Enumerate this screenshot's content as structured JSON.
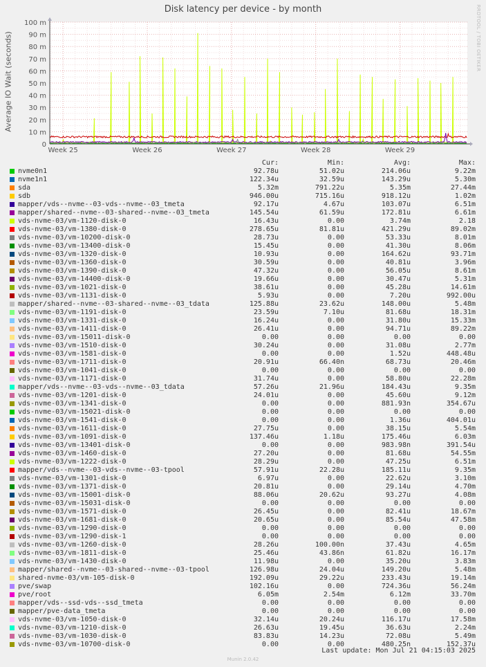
{
  "title": "Disk latency per device - by month",
  "side_label": "RRDTOOL / TOBI OETIKER",
  "footer": "Munin 2.0.42",
  "last_update": "Last update: Mon Jul 21 04:15:03 2025",
  "legend_headers": {
    "cur": "Cur:",
    "min": "Min:",
    "avg": "Avg:",
    "max": "Max:"
  },
  "chart_data": {
    "type": "line",
    "title": "Disk latency per device - by month",
    "ylabel": "Average IO Wait (seconds)",
    "xlabel": "",
    "ylim": [
      0,
      0.1
    ],
    "yticks": [
      {
        "value": 0,
        "label": "0"
      },
      {
        "value": 0.01,
        "label": "10 m"
      },
      {
        "value": 0.02,
        "label": "20 m"
      },
      {
        "value": 0.03,
        "label": "30 m"
      },
      {
        "value": 0.04,
        "label": "40 m"
      },
      {
        "value": 0.05,
        "label": "50 m"
      },
      {
        "value": 0.06,
        "label": "60 m"
      },
      {
        "value": 0.07,
        "label": "70 m"
      },
      {
        "value": 0.08,
        "label": "80 m"
      },
      {
        "value": 0.09,
        "label": "90 m"
      },
      {
        "value": 0.1,
        "label": "100 m"
      }
    ],
    "xticks": [
      {
        "day": 0,
        "label": "Week 25"
      },
      {
        "day": 7,
        "label": "Week 26"
      },
      {
        "day": 14,
        "label": "Week 27"
      },
      {
        "day": 21,
        "label": "Week 28"
      },
      {
        "day": 28,
        "label": "Week 29"
      }
    ],
    "xlim_days": [
      -1.1,
      33.6
    ],
    "grid": true,
    "series": [
      {
        "name": "vds-nvme-03/vm-1120-disk-0",
        "color": "#ccff00",
        "points": [
          [
            2.6,
            0.021
          ],
          [
            4.0,
            0.059
          ],
          [
            5.5,
            0.051
          ],
          [
            6.4,
            0.072
          ],
          [
            7.4,
            0.025
          ],
          [
            8.3,
            0.071
          ],
          [
            9.3,
            0.062
          ],
          [
            10.3,
            0.039
          ],
          [
            11.2,
            0.091
          ],
          [
            12.2,
            0.064
          ],
          [
            13.2,
            0.062
          ],
          [
            14.1,
            0.028
          ],
          [
            15.1,
            0.055
          ],
          [
            16.1,
            0.025
          ],
          [
            17.0,
            0.07
          ],
          [
            18.0,
            0.059
          ],
          [
            19.0,
            0.03
          ],
          [
            19.9,
            0.024
          ],
          [
            20.9,
            0.026
          ],
          [
            21.8,
            0.045
          ],
          [
            22.8,
            0.07
          ],
          [
            23.8,
            0.027
          ],
          [
            24.7,
            0.057
          ],
          [
            25.7,
            0.055
          ],
          [
            26.6,
            0.037
          ],
          [
            27.6,
            0.053
          ],
          [
            28.6,
            0.031
          ],
          [
            29.5,
            0.054
          ],
          [
            30.5,
            0.052
          ],
          [
            31.4,
            0.05
          ],
          [
            32.4,
            0.055
          ]
        ]
      },
      {
        "name": "vds-nvme-03/vm-1380-disk-0",
        "color": "#cc0000",
        "baseline": 0.0058,
        "noise": 0.0015,
        "bumps": [
          [
            32.0,
            0.009
          ]
        ]
      },
      {
        "name": "vds-nvme-03/vm-1681-disk-0",
        "color": "#7700aa",
        "baseline": 0.0015,
        "noise": 0.001,
        "bumps": [
          [
            5.9,
            0.005
          ],
          [
            31.8,
            0.009
          ],
          [
            22.9,
            0.004
          ],
          [
            14.1,
            0.004
          ]
        ]
      },
      {
        "name": "vds-nvme-03/vm-1290-disk-0",
        "color": "#888888",
        "baseline": 0.0008,
        "noise": 0.0008,
        "bumps": [
          [
            14.5,
            0.004
          ],
          [
            24.9,
            0.003
          ]
        ]
      },
      {
        "name": "nvme0n1",
        "color": "#00cc00",
        "baseline": 0.0003,
        "noise": 0.0005,
        "bumps": []
      }
    ]
  },
  "legend": [
    {
      "name": "nvme0n1",
      "color": "#00cc00",
      "cur": "92.78u",
      "min": "51.02u",
      "avg": "214.06u",
      "max": "9.22m"
    },
    {
      "name": "nvme1n1",
      "color": "#0066b3",
      "cur": "122.34u",
      "min": "32.59u",
      "avg": "143.29u",
      "max": "5.30m"
    },
    {
      "name": "sda",
      "color": "#ff8000",
      "cur": "5.32m",
      "min": "791.22u",
      "avg": "5.35m",
      "max": "27.44m"
    },
    {
      "name": "sdb",
      "color": "#ffcc00",
      "cur": "946.00u",
      "min": "715.16u",
      "avg": "918.12u",
      "max": "1.02m"
    },
    {
      "name": "mapper/vds--nvme--03-vds--nvme--03_tmeta",
      "color": "#330099",
      "cur": "92.17u",
      "min": "4.67u",
      "avg": "103.07u",
      "max": "6.51m"
    },
    {
      "name": "mapper/shared--nvme--03-shared--nvme--03_tmeta",
      "color": "#990099",
      "cur": "145.54u",
      "min": "61.59u",
      "avg": "172.81u",
      "max": "6.61m"
    },
    {
      "name": "vds-nvme-03/vm-1120-disk-0",
      "color": "#ccff00",
      "cur": "16.43u",
      "min": "0.00",
      "avg": "3.74m",
      "max": "2.18"
    },
    {
      "name": "vds-nvme-03/vm-1380-disk-0",
      "color": "#ff0000",
      "cur": "278.65u",
      "min": "81.81u",
      "avg": "421.29u",
      "max": "89.02m"
    },
    {
      "name": "vds-nvme-03/vm-10200-disk-0",
      "color": "#808080",
      "cur": "28.73u",
      "min": "0.00",
      "avg": "53.33u",
      "max": "8.01m"
    },
    {
      "name": "vds-nvme-03/vm-13400-disk-0",
      "color": "#008f00",
      "cur": "15.45u",
      "min": "0.00",
      "avg": "41.30u",
      "max": "8.06m"
    },
    {
      "name": "vds-nvme-03/vm-1320-disk-0",
      "color": "#00487d",
      "cur": "10.93u",
      "min": "0.00",
      "avg": "164.62u",
      "max": "93.71m"
    },
    {
      "name": "vds-nvme-03/vm-1360-disk-0",
      "color": "#b35a00",
      "cur": "30.59u",
      "min": "0.00",
      "avg": "40.81u",
      "max": "3.96m"
    },
    {
      "name": "vds-nvme-03/vm-1390-disk-0",
      "color": "#b38f00",
      "cur": "47.32u",
      "min": "0.00",
      "avg": "56.05u",
      "max": "8.61m"
    },
    {
      "name": "vds-nvme-03/vm-14400-disk-0",
      "color": "#6b006b",
      "cur": "19.66u",
      "min": "0.00",
      "avg": "30.47u",
      "max": "5.31m"
    },
    {
      "name": "vds-nvme-03/vm-1021-disk-0",
      "color": "#8fb300",
      "cur": "38.61u",
      "min": "0.00",
      "avg": "45.28u",
      "max": "14.61m"
    },
    {
      "name": "vds-nvme-03/vm-1131-disk-0",
      "color": "#b30000",
      "cur": "5.93u",
      "min": "0.00",
      "avg": "7.20u",
      "max": "992.00u"
    },
    {
      "name": "mapper/shared--nvme--03-shared--nvme--03_tdata",
      "color": "#bebebe",
      "cur": "125.88u",
      "min": "23.62u",
      "avg": "148.00u",
      "max": "5.48m"
    },
    {
      "name": "vds-nvme-03/vm-1191-disk-0",
      "color": "#80ff80",
      "cur": "23.59u",
      "min": "7.10u",
      "avg": "81.68u",
      "max": "18.31m"
    },
    {
      "name": "vds-nvme-03/vm-1331-disk-0",
      "color": "#80c9ff",
      "cur": "16.24u",
      "min": "0.00",
      "avg": "31.80u",
      "max": "15.33m"
    },
    {
      "name": "vds-nvme-03/vm-1411-disk-0",
      "color": "#ffc080",
      "cur": "26.41u",
      "min": "0.00",
      "avg": "94.71u",
      "max": "89.22m"
    },
    {
      "name": "vds-nvme-03/vm-15011-disk-0",
      "color": "#ffe680",
      "cur": "0.00",
      "min": "0.00",
      "avg": "0.00",
      "max": "0.00"
    },
    {
      "name": "vds-nvme-03/vm-1510-disk-0",
      "color": "#aa80ff",
      "cur": "30.24u",
      "min": "0.00",
      "avg": "31.08u",
      "max": "2.77m"
    },
    {
      "name": "vds-nvme-03/vm-1581-disk-0",
      "color": "#ee00cc",
      "cur": "0.00",
      "min": "0.00",
      "avg": "1.52u",
      "max": "448.48u"
    },
    {
      "name": "vds-nvme-03/vm-1711-disk-0",
      "color": "#ff8080",
      "cur": "20.91u",
      "min": "66.40n",
      "avg": "68.73u",
      "max": "20.46m"
    },
    {
      "name": "vds-nvme-03/vm-1041-disk-0",
      "color": "#666600",
      "cur": "0.00",
      "min": "0.00",
      "avg": "0.00",
      "max": "0.00"
    },
    {
      "name": "vds-nvme-03/vm-1171-disk-0",
      "color": "#ffbfff",
      "cur": "31.74u",
      "min": "0.00",
      "avg": "58.80u",
      "max": "22.28m"
    },
    {
      "name": "mapper/vds--nvme--03-vds--nvme--03_tdata",
      "color": "#00ffcc",
      "cur": "57.26u",
      "min": "21.96u",
      "avg": "184.43u",
      "max": "9.35m"
    },
    {
      "name": "vds-nvme-03/vm-1201-disk-0",
      "color": "#cc6699",
      "cur": "24.01u",
      "min": "0.00",
      "avg": "45.60u",
      "max": "9.12m"
    },
    {
      "name": "vds-nvme-03/vm-1341-disk-0",
      "color": "#999900",
      "cur": "0.00",
      "min": "0.00",
      "avg": "881.93n",
      "max": "354.67u"
    },
    {
      "name": "vds-nvme-03/vm-15021-disk-0",
      "color": "#00cc00",
      "cur": "0.00",
      "min": "0.00",
      "avg": "0.00",
      "max": "0.00"
    },
    {
      "name": "vds-nvme-03/vm-1541-disk-0",
      "color": "#0066b3",
      "cur": "0.00",
      "min": "0.00",
      "avg": "1.36u",
      "max": "404.01u"
    },
    {
      "name": "vds-nvme-03/vm-1611-disk-0",
      "color": "#ff8000",
      "cur": "27.75u",
      "min": "0.00",
      "avg": "38.15u",
      "max": "5.54m"
    },
    {
      "name": "vds-nvme-03/vm-1091-disk-0",
      "color": "#ffcc00",
      "cur": "137.46u",
      "min": "1.18u",
      "avg": "175.46u",
      "max": "6.03m"
    },
    {
      "name": "vds-nvme-03/vm-13401-disk-0",
      "color": "#330099",
      "cur": "0.00",
      "min": "0.00",
      "avg": "983.98n",
      "max": "391.54u"
    },
    {
      "name": "vds-nvme-03/vm-1460-disk-0",
      "color": "#990099",
      "cur": "27.20u",
      "min": "0.00",
      "avg": "81.68u",
      "max": "54.55m"
    },
    {
      "name": "vds-nvme-03/vm-1222-disk-0",
      "color": "#ccff00",
      "cur": "28.29u",
      "min": "0.00",
      "avg": "47.25u",
      "max": "6.51m"
    },
    {
      "name": "mapper/vds--nvme--03-vds--nvme--03-tpool",
      "color": "#ff0000",
      "cur": "57.91u",
      "min": "22.28u",
      "avg": "185.11u",
      "max": "9.35m"
    },
    {
      "name": "vds-nvme-03/vm-1301-disk-0",
      "color": "#808080",
      "cur": "6.97u",
      "min": "0.00",
      "avg": "22.62u",
      "max": "3.10m"
    },
    {
      "name": "vds-nvme-03/vm-1371-disk-0",
      "color": "#008f00",
      "cur": "20.81u",
      "min": "0.00",
      "avg": "29.14u",
      "max": "4.70m"
    },
    {
      "name": "vds-nvme-03/vm-15001-disk-0",
      "color": "#00487d",
      "cur": "88.06u",
      "min": "20.62u",
      "avg": "93.27u",
      "max": "4.08m"
    },
    {
      "name": "vds-nvme-03/vm-15031-disk-0",
      "color": "#b35a00",
      "cur": "0.00",
      "min": "0.00",
      "avg": "0.00",
      "max": "0.00"
    },
    {
      "name": "vds-nvme-03/vm-1571-disk-0",
      "color": "#b38f00",
      "cur": "26.45u",
      "min": "0.00",
      "avg": "82.41u",
      "max": "18.67m"
    },
    {
      "name": "vds-nvme-03/vm-1681-disk-0",
      "color": "#6b006b",
      "cur": "20.65u",
      "min": "0.00",
      "avg": "85.54u",
      "max": "47.58m"
    },
    {
      "name": "vds-nvme-03/vm-1290-disk-0",
      "color": "#8fb300",
      "cur": "0.00",
      "min": "0.00",
      "avg": "0.00",
      "max": "0.00"
    },
    {
      "name": "vds-nvme-03/vm-1290-disk-1",
      "color": "#b30000",
      "cur": "0.00",
      "min": "0.00",
      "avg": "0.00",
      "max": "0.00"
    },
    {
      "name": "vds-nvme-03/vm-1260-disk-0",
      "color": "#bebebe",
      "cur": "28.26u",
      "min": "100.00n",
      "avg": "37.43u",
      "max": "4.65m"
    },
    {
      "name": "vds-nvme-03/vm-1811-disk-0",
      "color": "#80ff80",
      "cur": "25.46u",
      "min": "43.86n",
      "avg": "61.82u",
      "max": "16.17m"
    },
    {
      "name": "vds-nvme-03/vm-1430-disk-0",
      "color": "#80c9ff",
      "cur": "11.98u",
      "min": "0.00",
      "avg": "35.20u",
      "max": "3.83m"
    },
    {
      "name": "mapper/shared--nvme--03-shared--nvme--03-tpool",
      "color": "#ffc080",
      "cur": "126.98u",
      "min": "24.04u",
      "avg": "149.20u",
      "max": "5.48m"
    },
    {
      "name": "shared-nvme-03/vm-105-disk-0",
      "color": "#ffe680",
      "cur": "192.09u",
      "min": "29.22u",
      "avg": "233.43u",
      "max": "19.14m"
    },
    {
      "name": "pve/swap",
      "color": "#aa80ff",
      "cur": "102.16u",
      "min": "0.00",
      "avg": "724.36u",
      "max": "56.24m"
    },
    {
      "name": "pve/root",
      "color": "#ee00cc",
      "cur": "6.05m",
      "min": "2.54m",
      "avg": "6.12m",
      "max": "33.70m"
    },
    {
      "name": "mapper/vds--ssd-vds--ssd_tmeta",
      "color": "#ff8080",
      "cur": "0.00",
      "min": "0.00",
      "avg": "0.00",
      "max": "0.00"
    },
    {
      "name": "mapper/pve-data_tmeta",
      "color": "#666600",
      "cur": "0.00",
      "min": "0.00",
      "avg": "0.00",
      "max": "0.00"
    },
    {
      "name": "vds-nvme-03/vm-1050-disk-0",
      "color": "#ffbfff",
      "cur": "32.14u",
      "min": "20.24u",
      "avg": "116.17u",
      "max": "17.58m"
    },
    {
      "name": "vds-nvme-03/vm-1210-disk-0",
      "color": "#00ffcc",
      "cur": "26.63u",
      "min": "19.45u",
      "avg": "36.63u",
      "max": "2.24m"
    },
    {
      "name": "vds-nvme-03/vm-1030-disk-0",
      "color": "#cc6699",
      "cur": "83.83u",
      "min": "14.23u",
      "avg": "72.08u",
      "max": "5.49m"
    },
    {
      "name": "vds-nvme-03/vm-10700-disk-0",
      "color": "#999900",
      "cur": "0.00",
      "min": "0.00",
      "avg": "480.25n",
      "max": "152.37u"
    }
  ]
}
